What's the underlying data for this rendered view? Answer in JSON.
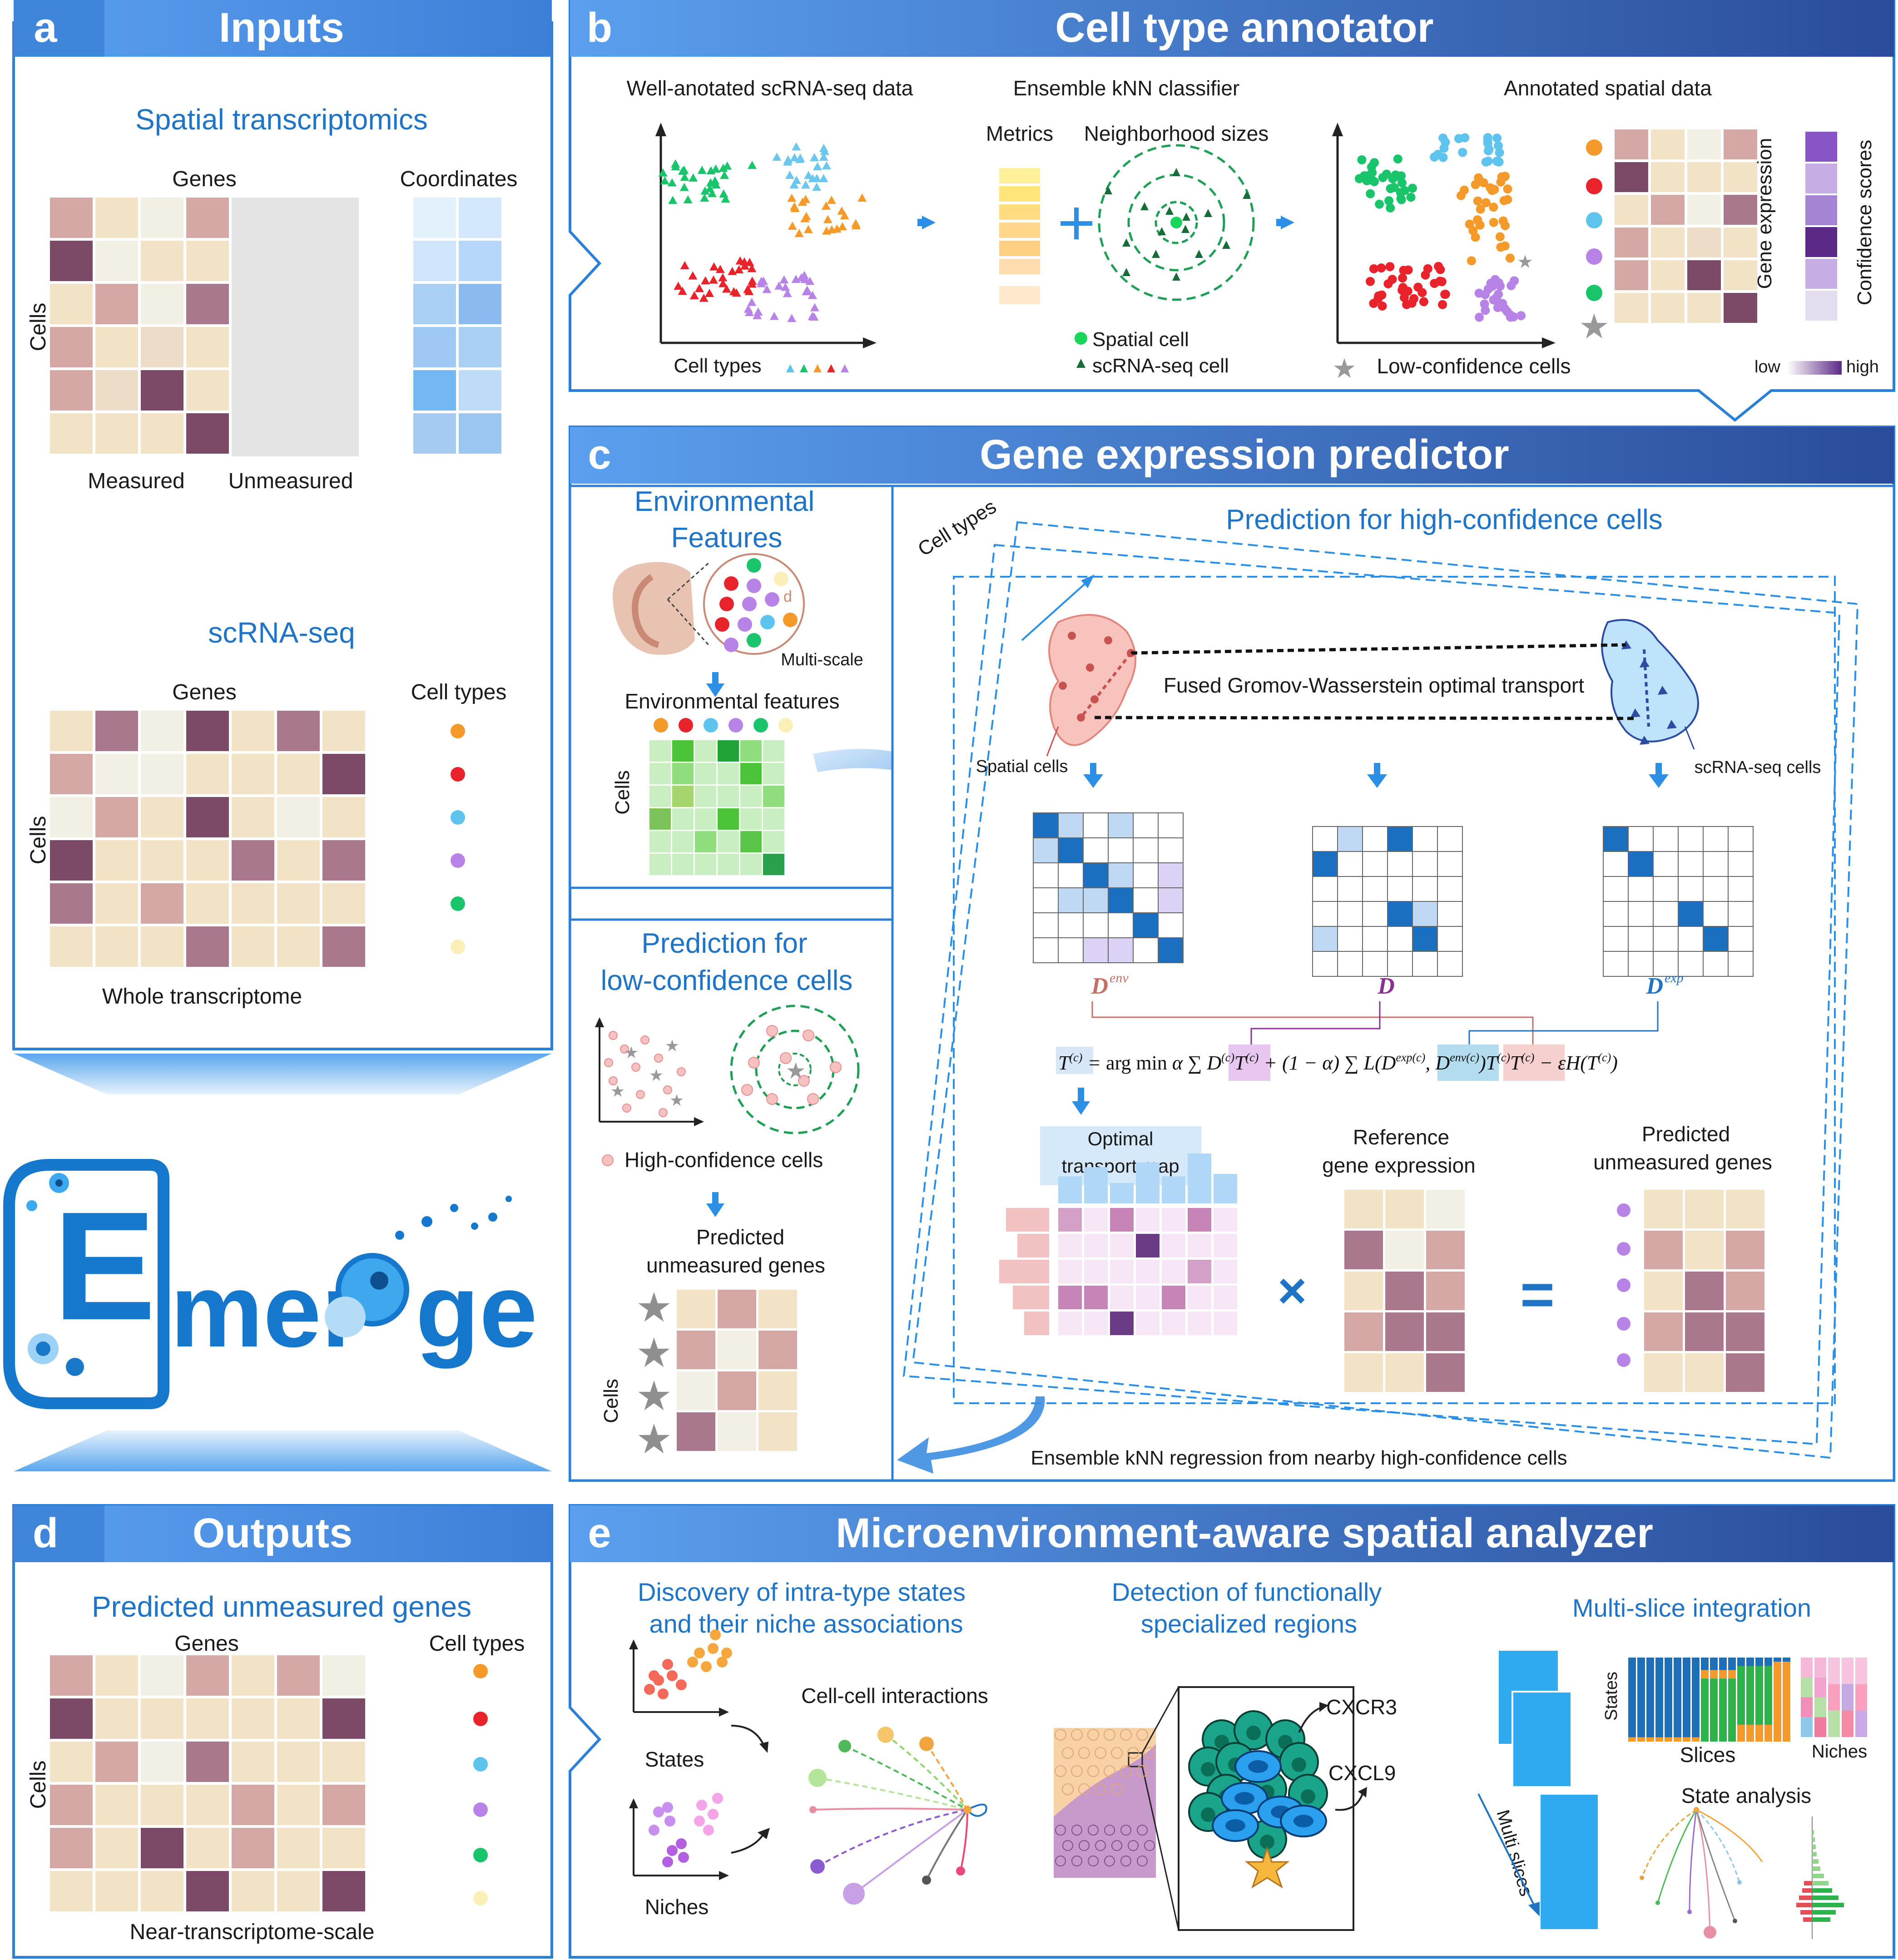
{
  "panels": {
    "a": {
      "letter": "a",
      "title": "Inputs",
      "spatial": {
        "title": "Spatial transcriptomics",
        "genes": "Genes",
        "coordinates": "Coordinates",
        "cells": "Cells",
        "measured": "Measured",
        "unmeasured": "Unmeasured"
      },
      "scrna": {
        "title": "scRNA-seq",
        "genes": "Genes",
        "cell_types": "Cell types",
        "cells": "Cells",
        "whole": "Whole transcriptome"
      }
    },
    "b": {
      "letter": "b",
      "title": "Cell type annotator",
      "well_annotated": "Well-anotated scRNA-seq data",
      "cell_types": "Cell types",
      "ensemble": "Ensemble kNN classifier",
      "metrics": "Metrics",
      "neighborhood": "Neighborhood sizes",
      "spatial_cell": "Spatial cell",
      "scrna_cell": "scRNA-seq cell",
      "annotated": "Annotated spatial data",
      "gene_expression": "Gene expression",
      "confidence": "Confidence scores",
      "low": "low",
      "high": "high",
      "low_conf": "Low-confidence cells"
    },
    "c": {
      "letter": "c",
      "title": "Gene expression predictor",
      "env_title_1": "Environmental",
      "env_title_2": "Features",
      "multi_scale": "Multi-scale",
      "d_label": "d",
      "env_features": "Environmental features",
      "cells": "Cells",
      "pred_high": "Prediction for high-confidence cells",
      "cell_types": "Cell types",
      "fgw": "Fused Gromov-Wasserstein optimal transport",
      "spatial_cells": "Spatial cells",
      "scrna_cells": "scRNA-seq cells",
      "d_env": "D",
      "d_env_sup": "env",
      "d_mid": "D",
      "d_exp": "D",
      "d_exp_sup": "exp",
      "optimal_1": "Optimal",
      "optimal_2": "transport map",
      "reference_1": "Reference",
      "reference_2": "gene expression",
      "predicted_1": "Predicted",
      "predicted_2": "unmeasured genes",
      "times": "×",
      "equals": "=",
      "pred_low_1": "Prediction for",
      "pred_low_2": "low-confidence cells",
      "high_conf": "High-confidence cells",
      "pred_unm_1": "Predicted",
      "pred_unm_2": "unmeasured genes",
      "ensemble_reg": "Ensemble kNN regression from nearby high-confidence cells"
    },
    "d": {
      "letter": "d",
      "title": "Outputs",
      "subtitle": "Predicted unmeasured genes",
      "genes": "Genes",
      "cell_types": "Cell types",
      "cells": "Cells",
      "near": "Near-transcriptome-scale"
    },
    "e": {
      "letter": "e",
      "title": "Microenvironment-aware spatial analyzer",
      "disc_1": "Discovery of intra-type states",
      "disc_2": "and their niche associations",
      "states": "States",
      "niches": "Niches",
      "cci": "Cell-cell interactions",
      "det_1": "Detection of functionally",
      "det_2": "specialized regions",
      "cxcr3": "CXCR3",
      "cxcl9": "CXCL9",
      "multi": "Multi-slice integration",
      "states_axis": "States",
      "slices": "Slices",
      "niches_axis": "Niches",
      "state_analysis": "State analysis",
      "multi_slices": "Multi slices"
    }
  },
  "colors": {
    "header_left": "#4a8fe0",
    "header_right": "#2a4c9a",
    "accent": "#1f74c6",
    "heat_mauve": "#d4a9a5",
    "heat_tan": "#f3e3c6"
  }
}
